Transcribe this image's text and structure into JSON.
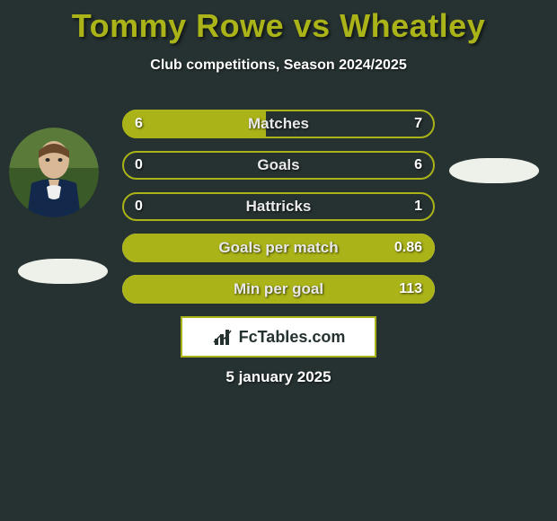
{
  "title": "Tommy Rowe vs Wheatley",
  "subtitle": "Club competitions, Season 2024/2025",
  "date_text": "5 january 2025",
  "brand_text": "FcTables.com",
  "colors": {
    "background": "#263131",
    "accent": "#aab317",
    "bar_fill": "#aab317",
    "bar_border_normal": "#aab317",
    "bar_border_inverted": "#eef0ea",
    "text_light": "#ffffff",
    "pill": "#eef0ea"
  },
  "bars": [
    {
      "label": "Matches",
      "left_val": "6",
      "right_val": "7",
      "fill_percent": 46,
      "inverted": false
    },
    {
      "label": "Goals",
      "left_val": "0",
      "right_val": "6",
      "fill_percent": 0,
      "inverted": false
    },
    {
      "label": "Hattricks",
      "left_val": "0",
      "right_val": "1",
      "fill_percent": 0,
      "inverted": false
    },
    {
      "label": "Goals per match",
      "left_val": "",
      "right_val": "0.86",
      "fill_percent": 100,
      "inverted": true
    },
    {
      "label": "Min per goal",
      "left_val": "",
      "right_val": "113",
      "fill_percent": 100,
      "inverted": true
    }
  ]
}
